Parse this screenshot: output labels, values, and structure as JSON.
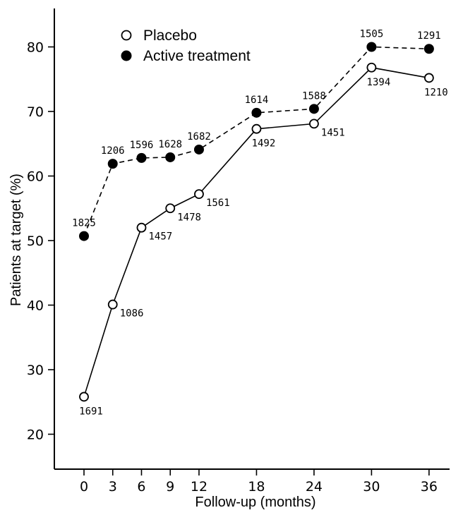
{
  "chart_data": {
    "type": "line",
    "xlabel": "Follow-up (months)",
    "ylabel": "Patients at target (%)",
    "x_ticks": [
      0,
      3,
      6,
      9,
      12,
      18,
      24,
      30,
      36
    ],
    "y_ticks": [
      20,
      30,
      40,
      50,
      60,
      70,
      80
    ],
    "xlim": [
      -3,
      39
    ],
    "ylim": [
      14,
      87
    ],
    "grid": false,
    "legend_position": "top-left",
    "series": [
      {
        "name": "Placebo",
        "marker": "open-circle",
        "line_style": "solid",
        "x": [
          0,
          3,
          6,
          9,
          12,
          18,
          24,
          30,
          36
        ],
        "y": [
          25.8,
          40.1,
          52.0,
          55.0,
          57.2,
          67.3,
          68.1,
          76.8,
          75.2
        ],
        "labels": [
          "1691",
          "1086",
          "1457",
          "1478",
          "1561",
          "1492",
          "1451",
          "1394",
          "1210"
        ],
        "label_position": [
          "below",
          "right-low",
          "right-low",
          "right-low",
          "right-low",
          "below",
          "right-low",
          "below",
          "below"
        ]
      },
      {
        "name": "Active treatment",
        "marker": "filled-circle",
        "line_style": "dashed",
        "x": [
          0,
          3,
          6,
          9,
          12,
          18,
          24,
          30,
          36
        ],
        "y": [
          50.7,
          61.9,
          62.8,
          62.9,
          64.1,
          69.8,
          70.4,
          80.0,
          79.7
        ],
        "labels": [
          "1825",
          "1206",
          "1596",
          "1628",
          "1682",
          "1614",
          "1588",
          "1505",
          "1291"
        ],
        "label_position": [
          "above",
          "above",
          "above",
          "above",
          "above",
          "above",
          "above",
          "above",
          "above"
        ]
      }
    ]
  }
}
